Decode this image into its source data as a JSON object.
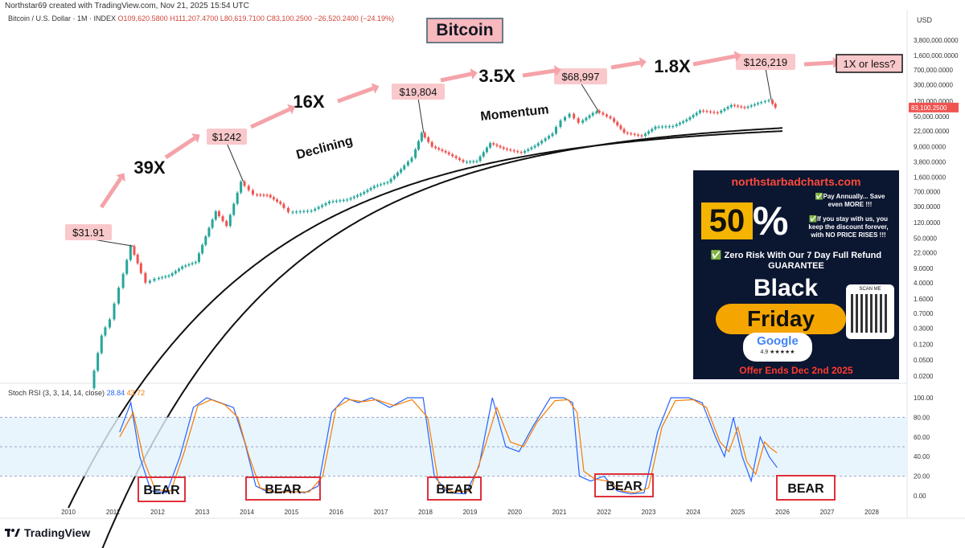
{
  "header": {
    "creator": "Northstar69 created with TradingView.com, Nov 21, 2025 15:54 UTC",
    "symbol": "Bitcoin / U.S. Dollar · 1M · INDEX",
    "ohlc": "O109,620.5800  H111,207.4700  L80,619.7100  C83,100.2500  −26,520.2400 (−24.19%)",
    "currency": "USD"
  },
  "title": "Bitcoin",
  "colors": {
    "up": "#26a69a",
    "down": "#ef5350",
    "k": "#2962ff",
    "d": "#f57c00",
    "label_bg": "#f9c8cb",
    "box": "#e0303a",
    "band": "#e3f2fd"
  },
  "annotations": {
    "prices": [
      "$31.91",
      "$1242",
      "$19,804",
      "$68,997",
      "$126,219"
    ],
    "multiples": [
      "39X",
      "16X",
      "3.5X",
      "1.8X"
    ],
    "question": "1X or less?",
    "declining": "Declining",
    "momentum": "Momentum",
    "current_price": "83,100.2500",
    "bear": [
      "BEAR",
      "BEAR",
      "BEAR",
      "BEAR",
      "BEAR"
    ]
  },
  "rsi_panel": {
    "label": "Stoch RSI (3, 3, 14, 14, close)",
    "k_value": "28.84",
    "d_value": "43.72"
  },
  "ad": {
    "site": "northstarbadcharts.com",
    "fifty": "50",
    "pct": "%",
    "line1": "✅Pay Annually... Save even MORE !!!",
    "line2": "✅If you stay with us, you keep the discount forever, with NO PRICE RISES !!!",
    "line3": "✅ Zero Risk With Our 7 Day Full Refund GUARANTEE",
    "black": "Black",
    "friday": "Friday",
    "google": "Google",
    "rating": "4.9 ★★★★★",
    "scan": "SCAN ME",
    "ends": "Offer Ends Dec 2nd 2025"
  },
  "brand": "TradingView",
  "chart_data": [
    {
      "type": "line",
      "title": "Bitcoin",
      "scale": "log",
      "y_ticks": [
        "3,800,000.0000",
        "1,600,000.0000",
        "700,000.0000",
        "300,000.0000",
        "120,000.0000",
        "50,000.0000",
        "22,000.0000",
        "9,000.0000",
        "3,800.0000",
        "1,600.0000",
        "700.0000",
        "300.0000",
        "120.0000",
        "50.0000",
        "22.0000",
        "9.0000",
        "4.0000",
        "1.6000",
        "0.7000",
        "0.3000",
        "0.1200",
        "0.0500",
        "0.0200"
      ],
      "y_tick_values": [
        3800000,
        1600000,
        700000,
        300000,
        120000,
        50000,
        22000,
        9000,
        3800,
        1600,
        700,
        300,
        120,
        50,
        22,
        9,
        4,
        1.6,
        0.7,
        0.3,
        0.12,
        0.05,
        0.02
      ],
      "x_ticks": [
        "2010",
        "2011",
        "2012",
        "2013",
        "2014",
        "2015",
        "2016",
        "2017",
        "2018",
        "2019",
        "2020",
        "2021",
        "2022",
        "2023",
        "2024",
        "2025",
        "2026",
        "2027",
        "2028"
      ],
      "series": [
        {
          "values": [
            [
              2010.55,
              0.01
            ],
            [
              2010.8,
              0.2
            ],
            [
              2011.0,
              0.5
            ],
            [
              2011.2,
              3
            ],
            [
              2011.45,
              31.91
            ],
            [
              2011.6,
              12
            ],
            [
              2011.8,
              4
            ],
            [
              2012.0,
              5
            ],
            [
              2012.3,
              6
            ],
            [
              2012.6,
              10
            ],
            [
              2012.9,
              13
            ],
            [
              2013.2,
              90
            ],
            [
              2013.35,
              230
            ],
            [
              2013.6,
              100
            ],
            [
              2013.92,
              1242
            ],
            [
              2014.2,
              600
            ],
            [
              2014.5,
              580
            ],
            [
              2014.8,
              350
            ],
            [
              2015.0,
              220
            ],
            [
              2015.5,
              240
            ],
            [
              2015.9,
              400
            ],
            [
              2016.3,
              450
            ],
            [
              2016.6,
              620
            ],
            [
              2016.9,
              960
            ],
            [
              2017.2,
              1200
            ],
            [
              2017.5,
              2500
            ],
            [
              2017.75,
              4800
            ],
            [
              2017.96,
              19804
            ],
            [
              2018.2,
              9000
            ],
            [
              2018.5,
              6500
            ],
            [
              2018.9,
              3800
            ],
            [
              2019.2,
              4000
            ],
            [
              2019.5,
              11000
            ],
            [
              2019.8,
              8000
            ],
            [
              2020.2,
              6400
            ],
            [
              2020.5,
              9500
            ],
            [
              2020.9,
              19000
            ],
            [
              2021.1,
              40000
            ],
            [
              2021.3,
              58000
            ],
            [
              2021.5,
              35000
            ],
            [
              2021.8,
              61000
            ],
            [
              2021.87,
              68997
            ],
            [
              2022.2,
              45000
            ],
            [
              2022.5,
              20000
            ],
            [
              2022.9,
              16500
            ],
            [
              2023.2,
              28000
            ],
            [
              2023.6,
              29000
            ],
            [
              2023.9,
              42000
            ],
            [
              2024.2,
              70000
            ],
            [
              2024.6,
              62000
            ],
            [
              2024.9,
              96000
            ],
            [
              2025.2,
              82000
            ],
            [
              2025.5,
              107000
            ],
            [
              2025.75,
              126219
            ],
            [
              2025.88,
              83100
            ]
          ]
        }
      ]
    },
    {
      "type": "line",
      "title": "Stoch RSI (3, 3, 14, 14, close)",
      "ylim": [
        0,
        100
      ],
      "y_ticks": [
        "100.00",
        "80.00",
        "60.00",
        "40.00",
        "20.00",
        "0.00"
      ],
      "y_tick_values": [
        100,
        80,
        60,
        40,
        20,
        0
      ],
      "bands": [
        20,
        80
      ],
      "series": [
        {
          "name": "K",
          "values": [
            [
              2011.15,
              65
            ],
            [
              2011.4,
              95
            ],
            [
              2011.6,
              40
            ],
            [
              2011.85,
              5
            ],
            [
              2012.2,
              3
            ],
            [
              2012.5,
              40
            ],
            [
              2012.8,
              90
            ],
            [
              2013.1,
              100
            ],
            [
              2013.4,
              95
            ],
            [
              2013.7,
              90
            ],
            [
              2013.95,
              55
            ],
            [
              2014.2,
              10
            ],
            [
              2014.5,
              3
            ],
            [
              2014.9,
              5
            ],
            [
              2015.3,
              3
            ],
            [
              2015.6,
              10
            ],
            [
              2015.9,
              85
            ],
            [
              2016.2,
              100
            ],
            [
              2016.5,
              95
            ],
            [
              2016.8,
              100
            ],
            [
              2017.2,
              90
            ],
            [
              2017.6,
              100
            ],
            [
              2017.95,
              100
            ],
            [
              2018.2,
              20
            ],
            [
              2018.5,
              3
            ],
            [
              2018.9,
              2
            ],
            [
              2019.2,
              30
            ],
            [
              2019.5,
              100
            ],
            [
              2019.8,
              50
            ],
            [
              2020.1,
              45
            ],
            [
              2020.4,
              70
            ],
            [
              2020.8,
              100
            ],
            [
              2021.1,
              100
            ],
            [
              2021.3,
              95
            ],
            [
              2021.45,
              20
            ],
            [
              2021.7,
              15
            ],
            [
              2022.0,
              20
            ],
            [
              2022.3,
              5
            ],
            [
              2022.6,
              2
            ],
            [
              2022.9,
              3
            ],
            [
              2023.2,
              65
            ],
            [
              2023.5,
              100
            ],
            [
              2023.9,
              100
            ],
            [
              2024.2,
              95
            ],
            [
              2024.5,
              60
            ],
            [
              2024.7,
              40
            ],
            [
              2024.9,
              80
            ],
            [
              2025.1,
              40
            ],
            [
              2025.3,
              15
            ],
            [
              2025.5,
              60
            ],
            [
              2025.7,
              40
            ],
            [
              2025.88,
              28.84
            ]
          ]
        },
        {
          "name": "D",
          "values": [
            [
              2011.15,
              60
            ],
            [
              2011.45,
              85
            ],
            [
              2011.7,
              35
            ],
            [
              2011.95,
              6
            ],
            [
              2012.3,
              5
            ],
            [
              2012.6,
              45
            ],
            [
              2012.9,
              92
            ],
            [
              2013.2,
              98
            ],
            [
              2013.5,
              93
            ],
            [
              2013.8,
              80
            ],
            [
              2014.05,
              40
            ],
            [
              2014.3,
              8
            ],
            [
              2014.6,
              4
            ],
            [
              2015.0,
              4
            ],
            [
              2015.4,
              4
            ],
            [
              2015.7,
              20
            ],
            [
              2016.0,
              90
            ],
            [
              2016.3,
              98
            ],
            [
              2016.6,
              96
            ],
            [
              2016.9,
              98
            ],
            [
              2017.3,
              92
            ],
            [
              2017.7,
              98
            ],
            [
              2018.05,
              80
            ],
            [
              2018.3,
              12
            ],
            [
              2018.6,
              4
            ],
            [
              2019.0,
              5
            ],
            [
              2019.3,
              45
            ],
            [
              2019.6,
              90
            ],
            [
              2019.9,
              55
            ],
            [
              2020.2,
              50
            ],
            [
              2020.5,
              75
            ],
            [
              2020.9,
              97
            ],
            [
              2021.2,
              98
            ],
            [
              2021.4,
              85
            ],
            [
              2021.55,
              25
            ],
            [
              2021.8,
              17
            ],
            [
              2022.1,
              15
            ],
            [
              2022.4,
              5
            ],
            [
              2022.7,
              3
            ],
            [
              2023.0,
              8
            ],
            [
              2023.3,
              70
            ],
            [
              2023.6,
              97
            ],
            [
              2024.0,
              98
            ],
            [
              2024.3,
              90
            ],
            [
              2024.6,
              55
            ],
            [
              2024.8,
              45
            ],
            [
              2025.0,
              70
            ],
            [
              2025.2,
              35
            ],
            [
              2025.4,
              22
            ],
            [
              2025.6,
              55
            ],
            [
              2025.75,
              48
            ],
            [
              2025.88,
              43.72
            ]
          ]
        }
      ]
    }
  ]
}
